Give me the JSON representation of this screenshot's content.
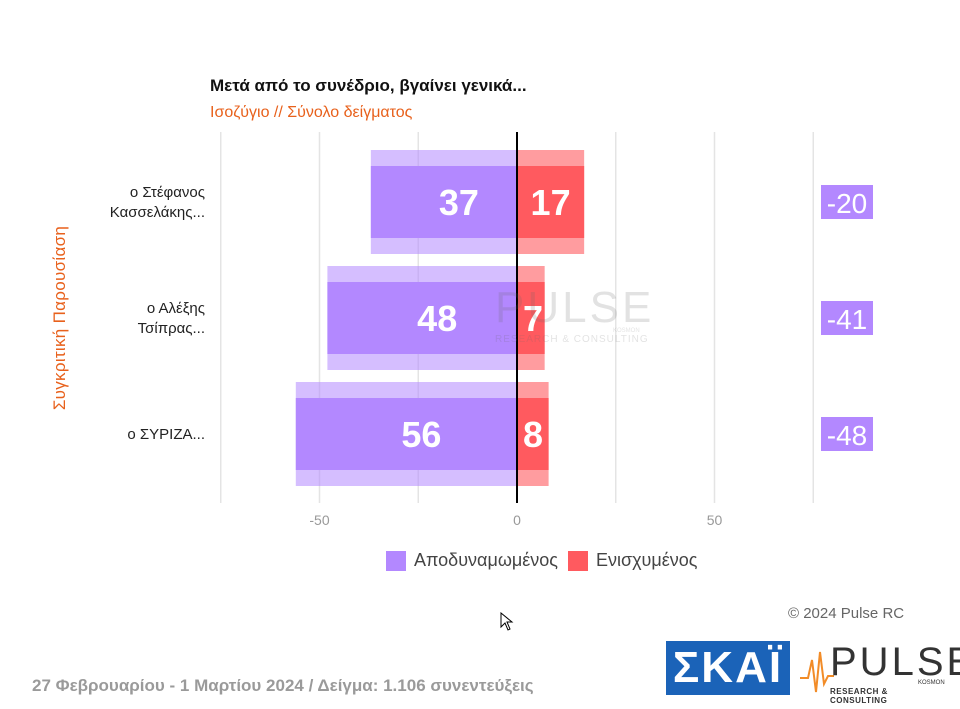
{
  "header": {
    "title": "Μετά από το συνέδριο, βγαίνει γενικά...",
    "subtitle": "Ισοζύγιο // Σύνολο δείγματος"
  },
  "side_label": "Συγκριτική Παρουσίαση",
  "chart_data": {
    "type": "bar",
    "orientation": "horizontal-diverging",
    "categories": [
      "ο Στέφανος Κασσελάκης...",
      "ο Αλέξης Τσίπρας...",
      "ο ΣΥΡΙΖΑ..."
    ],
    "category_lines": [
      [
        "ο Στέφανος",
        "Κασσελάκης..."
      ],
      [
        "ο Αλέξης",
        "Τσίπρας..."
      ],
      [
        "ο ΣΥΡΙΖΑ..."
      ]
    ],
    "series": [
      {
        "name": "Αποδυναμωμένος",
        "values": [
          37,
          48,
          56
        ],
        "color": "#b388ff"
      },
      {
        "name": "Ενισχυμένος",
        "values": [
          17,
          7,
          8
        ],
        "color": "#ff5a5f"
      }
    ],
    "balance": [
      -20,
      -41,
      -48
    ],
    "balance_labels": [
      "-20",
      "-41",
      "-48"
    ],
    "balance_color": "#b388ff",
    "xlim": [
      -75,
      75
    ],
    "ticks": [
      -50,
      0,
      50
    ],
    "tick_labels": [
      "-50",
      "0",
      "50"
    ],
    "grid": true,
    "legend_position": "bottom"
  },
  "watermark": {
    "word": "PULSE",
    "sub": "RESEARCH & CONSULTING",
    "small": "KOSMON"
  },
  "copyright": "© 2024 Pulse RC",
  "footer": "27 Φεβρουαρίου - 1 Μαρτίου 2024  /  Δείγμα:  1.106 συνεντεύξεις",
  "logos": {
    "skai": "ΣΚΑΪ",
    "pulse": {
      "word": "PULSE",
      "sub": "RESEARCH & CONSULTING",
      "small": "KOSMON"
    }
  }
}
